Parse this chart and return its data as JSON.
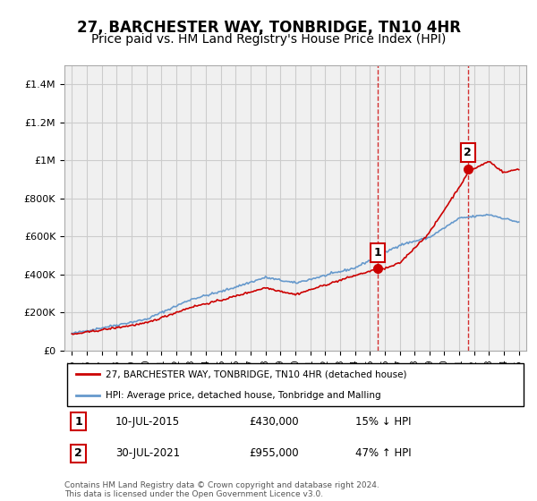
{
  "title": "27, BARCHESTER WAY, TONBRIDGE, TN10 4HR",
  "subtitle": "Price paid vs. HM Land Registry's House Price Index (HPI)",
  "legend_line1": "27, BARCHESTER WAY, TONBRIDGE, TN10 4HR (detached house)",
  "legend_line2": "HPI: Average price, detached house, Tonbridge and Malling",
  "transaction1_date": "10-JUL-2015",
  "transaction1_price": 430000,
  "transaction1_pct": "15% ↓ HPI",
  "transaction2_date": "30-JUL-2021",
  "transaction2_price": 955000,
  "transaction2_pct": "47% ↑ HPI",
  "footnote": "Contains HM Land Registry data © Crown copyright and database right 2024.\nThis data is licensed under the Open Government Licence v3.0.",
  "ylim": [
    0,
    1500000
  ],
  "yticks": [
    0,
    200000,
    400000,
    600000,
    800000,
    1000000,
    1200000,
    1400000
  ],
  "line_red_color": "#cc0000",
  "line_blue_color": "#6699cc",
  "background_color": "#f0f0f0",
  "grid_color": "#cccccc",
  "vline_color": "#cc0000",
  "title_fontsize": 12,
  "subtitle_fontsize": 10,
  "transaction1_year": 2015.53,
  "transaction2_year": 2021.58
}
